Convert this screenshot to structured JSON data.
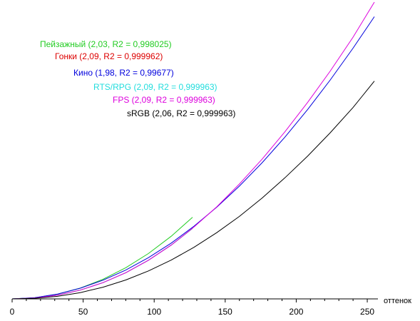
{
  "chart_data": {
    "type": "line",
    "xlabel": "оттенок",
    "ylabel": "",
    "xlim": [
      0,
      255
    ],
    "x_ticks": [
      0,
      50,
      100,
      150,
      200,
      250
    ],
    "grid": false,
    "legend_placement": "top-left",
    "series": [
      {
        "name": "Пейзажный (2,03, R2 = 0,998025)",
        "color": "#22cc22",
        "x": [
          0,
          16,
          32,
          48,
          64,
          80,
          96,
          112,
          127
        ],
        "y": [
          0,
          0.0039,
          0.0158,
          0.0364,
          0.066,
          0.105,
          0.153,
          0.211,
          0.275
        ]
      },
      {
        "name": "Гонки (2,09, R2 = 0,999962)",
        "color": "#dd0000",
        "x": [
          0,
          16,
          32,
          48,
          64,
          80,
          96,
          112,
          127
        ],
        "y": [
          0,
          0.0029,
          0.0125,
          0.0296,
          0.0548,
          0.0883,
          0.1304,
          0.1813,
          0.2376
        ]
      },
      {
        "name": "Кино (1,98, R2 = 0,99677)",
        "color": "#0000dd",
        "x": [
          0,
          16,
          32,
          48,
          64,
          80,
          96,
          112,
          128,
          144,
          160,
          176,
          192,
          208,
          224,
          240,
          255
        ],
        "y": [
          0,
          0.0041,
          0.0164,
          0.036,
          0.063,
          0.097,
          0.139,
          0.188,
          0.245,
          0.309,
          0.38,
          0.459,
          0.545,
          0.638,
          0.738,
          0.845,
          0.951
        ]
      },
      {
        "name": "RTS/RPG (2,09, R2 = 0,999963)",
        "color": "#22dddd",
        "x": [
          0,
          16,
          32,
          48,
          64,
          80,
          96,
          112,
          127
        ],
        "y": [
          0,
          0.0029,
          0.0125,
          0.0296,
          0.0548,
          0.0883,
          0.1304,
          0.1813,
          0.2376
        ]
      },
      {
        "name": "FPS (2,09, R2 = 0,999963)",
        "color": "#dd00dd",
        "x": [
          0,
          16,
          32,
          48,
          64,
          80,
          96,
          112,
          128,
          144,
          160,
          176,
          192,
          208,
          224,
          240,
          255
        ],
        "y": [
          0,
          0.0029,
          0.0125,
          0.0296,
          0.0548,
          0.0883,
          0.1304,
          0.1813,
          0.242,
          0.31,
          0.387,
          0.471,
          0.563,
          0.662,
          0.768,
          0.882,
          1.0
        ]
      },
      {
        "name": "sRGB (2,06, R2 = 0,999963)",
        "color": "#000000",
        "x": [
          0,
          16,
          32,
          48,
          64,
          80,
          96,
          112,
          128,
          144,
          160,
          176,
          192,
          208,
          224,
          240,
          255
        ],
        "y": [
          0,
          0.0022,
          0.0087,
          0.0211,
          0.0395,
          0.0638,
          0.0942,
          0.1308,
          0.1737,
          0.223,
          0.278,
          0.34,
          0.408,
          0.481,
          0.56,
          0.645,
          0.734
        ]
      }
    ]
  }
}
